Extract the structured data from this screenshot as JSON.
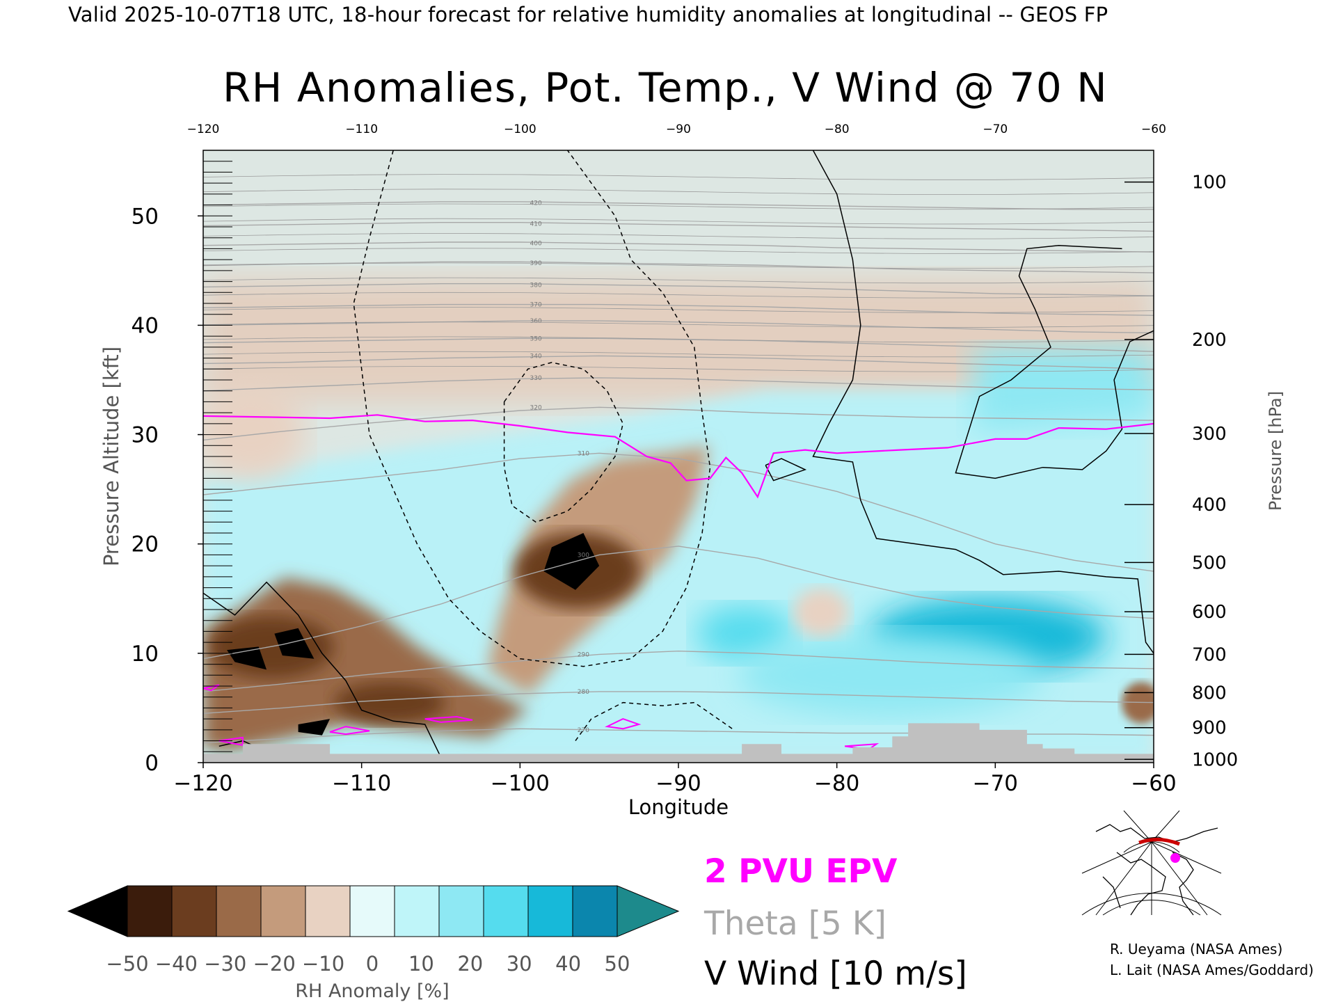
{
  "header": {
    "valid_line": "Valid 2025-10-07T18 UTC, 18-hour forecast for relative humidity anomalies at longitudinal -- GEOS FP",
    "title": "RH Anomalies, Pot. Temp., V Wind @ 70 N"
  },
  "legend": {
    "epv": "2 PVU EPV",
    "theta": "Theta [5 K]",
    "vwind": "V Wind [10 m/s]"
  },
  "credits": {
    "line1": "R. Ueyama (NASA Ames)",
    "line2": "L. Lait (NASA Ames/Goddard)"
  },
  "colors": {
    "epv": "#ff00ff",
    "theta": "#a8a8a8",
    "vwind": "#000000",
    "terrain": "#c0c0c0",
    "locator_marker": "#ff00ff",
    "locator_line": "#cc0000"
  },
  "chart_data": {
    "type": "heatmap",
    "title": "RH Anomalies, Pot. Temp., V Wind @ 70 N",
    "xlabel": "Longitude",
    "ylabel": "Pressure Altitude [kft]",
    "ylabel_right": "Pressure [hPa]",
    "colorbar_label": "RH Anomaly [%]",
    "xlim": [
      -120,
      -60
    ],
    "ylim": [
      0,
      56
    ],
    "x_ticks": [
      -120,
      -110,
      -100,
      -90,
      -80,
      -70,
      -60
    ],
    "y_ticks": [
      0,
      10,
      20,
      30,
      40,
      50
    ],
    "pressure_ticks": [
      {
        "hpa": 100,
        "kft": 53.1
      },
      {
        "hpa": 200,
        "kft": 38.7
      },
      {
        "hpa": 300,
        "kft": 30.1
      },
      {
        "hpa": 400,
        "kft": 23.6
      },
      {
        "hpa": 500,
        "kft": 18.3
      },
      {
        "hpa": 600,
        "kft": 13.8
      },
      {
        "hpa": 700,
        "kft": 9.9
      },
      {
        "hpa": 800,
        "kft": 6.4
      },
      {
        "hpa": 900,
        "kft": 3.2
      },
      {
        "hpa": 1000,
        "kft": 0.3
      }
    ],
    "colorbar": {
      "ticks": [
        -50,
        -40,
        -30,
        -20,
        -10,
        0,
        10,
        20,
        30,
        40,
        50
      ],
      "colors": [
        "#3b1c0c",
        "#6b3d1f",
        "#9a6a48",
        "#c49b7c",
        "#e8d2c2",
        "#e6fafa",
        "#bff5f9",
        "#8ee8f3",
        "#55dcee",
        "#17b9d9",
        "#0b86ad"
      ],
      "under_color": "#000000",
      "over_color": "#1d8a8c"
    },
    "background_fields": {
      "stratosphere_fill": "#dde7e3",
      "lower_stratosphere_tan": "#e3cfc0",
      "moist_cyan": "#b9f1f7"
    },
    "theta_contours": [
      {
        "theta": 270,
        "y": [
          1.8,
          2.2,
          2.6,
          2.9,
          3.1,
          3.0,
          2.9,
          2.8,
          2.7,
          2.7,
          2.6,
          2.6,
          2.5
        ]
      },
      {
        "theta": 280,
        "y": [
          4.5,
          5.0,
          5.6,
          6.0,
          6.3,
          6.5,
          6.5,
          6.4,
          6.2,
          6.0,
          5.8,
          5.6,
          5.5
        ]
      },
      {
        "theta": 290,
        "y": [
          6.5,
          7.2,
          8.0,
          8.7,
          9.3,
          9.9,
          10.2,
          10.0,
          9.6,
          9.2,
          8.9,
          8.7,
          8.6
        ]
      },
      {
        "theta": 300,
        "y": [
          9.5,
          10.8,
          12.5,
          14.5,
          17.0,
          19.0,
          19.8,
          18.7,
          16.8,
          15.2,
          14.2,
          13.6,
          13.2
        ]
      },
      {
        "theta": 310,
        "y": [
          24.5,
          25.3,
          26.0,
          26.8,
          27.8,
          28.3,
          27.8,
          26.5,
          24.8,
          22.5,
          20.0,
          18.5,
          17.5
        ]
      },
      {
        "theta": 320,
        "y": [
          29.5,
          30.3,
          31.0,
          31.6,
          32.2,
          32.5,
          32.3,
          32.0,
          31.8,
          31.6,
          31.5,
          31.4,
          31.3
        ]
      },
      {
        "theta": 330,
        "y": [
          34.0,
          34.3,
          34.6,
          34.9,
          35.1,
          35.2,
          35.1,
          34.9,
          34.7,
          34.5,
          34.3,
          34.2,
          34.1
        ]
      },
      {
        "theta": 340,
        "y": [
          36.5,
          36.6,
          36.8,
          37.0,
          37.1,
          37.2,
          37.1,
          37.0,
          36.8,
          36.6,
          36.4,
          36.2,
          36.0
        ]
      },
      {
        "theta": 350,
        "y": [
          38.4,
          38.5,
          38.6,
          38.7,
          38.8,
          38.8,
          38.7,
          38.6,
          38.4,
          38.2,
          38.0,
          37.8,
          37.6
        ]
      },
      {
        "theta": 360,
        "y": [
          40.0,
          40.1,
          40.2,
          40.3,
          40.4,
          40.4,
          40.3,
          40.2,
          40.0,
          39.8,
          39.6,
          39.4,
          39.3
        ]
      },
      {
        "theta": 370,
        "y": [
          41.6,
          41.7,
          41.8,
          41.9,
          41.9,
          41.9,
          41.8,
          41.7,
          41.5,
          41.3,
          41.1,
          41.0,
          40.9
        ]
      },
      {
        "theta": 380,
        "y": [
          43.5,
          43.6,
          43.7,
          43.8,
          43.8,
          43.7,
          43.6,
          43.5,
          43.3,
          43.1,
          42.9,
          42.8,
          42.7
        ]
      },
      {
        "theta": 390,
        "y": [
          45.5,
          45.6,
          45.7,
          45.8,
          45.8,
          45.7,
          45.6,
          45.5,
          45.3,
          45.1,
          45.0,
          44.9,
          44.8
        ]
      },
      {
        "theta": 400,
        "y": [
          47.3,
          47.4,
          47.5,
          47.6,
          47.6,
          47.5,
          47.4,
          47.3,
          47.1,
          47.0,
          46.9,
          46.8,
          46.7
        ]
      },
      {
        "theta": 410,
        "y": [
          49.1,
          49.2,
          49.3,
          49.4,
          49.4,
          49.3,
          49.2,
          49.1,
          49.0,
          48.9,
          48.8,
          48.7,
          48.6
        ]
      },
      {
        "theta": 420,
        "y": [
          51.0,
          51.1,
          51.2,
          51.3,
          51.3,
          51.2,
          51.1,
          51.0,
          50.9,
          50.8,
          50.7,
          50.6,
          50.6
        ]
      }
    ],
    "theta_x": [
      -120,
      -115,
      -110,
      -105,
      -100,
      -95,
      -90,
      -85,
      -80,
      -75,
      -70,
      -65,
      -60
    ],
    "theta_dense_extra_count": 14,
    "epv_2pvu": {
      "points": [
        [
          -120,
          31.7
        ],
        [
          -116,
          31.6
        ],
        [
          -112,
          31.5
        ],
        [
          -109,
          31.8
        ],
        [
          -106,
          31.2
        ],
        [
          -103,
          31.3
        ],
        [
          -100,
          30.8
        ],
        [
          -97,
          30.2
        ],
        [
          -94,
          29.8
        ],
        [
          -92,
          28.0
        ],
        [
          -90.5,
          27.4
        ],
        [
          -89.5,
          25.8
        ],
        [
          -88,
          26.0
        ],
        [
          -87,
          27.9
        ],
        [
          -86,
          26.5
        ],
        [
          -85,
          24.3
        ],
        [
          -84,
          28.3
        ],
        [
          -82,
          28.6
        ],
        [
          -80,
          28.3
        ],
        [
          -76,
          28.6
        ],
        [
          -73,
          28.8
        ],
        [
          -70,
          29.6
        ],
        [
          -68,
          29.6
        ],
        [
          -66,
          30.6
        ],
        [
          -63,
          30.5
        ],
        [
          -60,
          31.0
        ]
      ],
      "small_loops": [
        [
          [
            -120,
            6.8
          ],
          [
            -119,
            7.1
          ],
          [
            -119.5,
            6.6
          ]
        ],
        [
          [
            -112,
            2.8
          ],
          [
            -111,
            3.3
          ],
          [
            -109.5,
            2.9
          ],
          [
            -111,
            2.6
          ]
        ],
        [
          [
            -106,
            4.0
          ],
          [
            -104,
            4.2
          ],
          [
            -103,
            3.9
          ],
          [
            -105,
            3.7
          ]
        ],
        [
          [
            -94.5,
            3.3
          ],
          [
            -93.5,
            4.0
          ],
          [
            -92.5,
            3.5
          ],
          [
            -93.5,
            3.1
          ]
        ],
        [
          [
            -119,
            2.0
          ],
          [
            -117.5,
            2.3
          ],
          [
            -117.5,
            1.6
          ]
        ],
        [
          [
            -79.5,
            1.5
          ],
          [
            -77.5,
            1.7
          ],
          [
            -78,
            1.2
          ]
        ]
      ]
    },
    "vwind_contours": [
      {
        "level": 10,
        "style": "dashed",
        "points": [
          [
            -108,
            56
          ],
          [
            -109.5,
            48
          ],
          [
            -110.5,
            42
          ],
          [
            -110,
            36
          ],
          [
            -109.5,
            30
          ],
          [
            -108,
            25
          ],
          [
            -106.5,
            20
          ],
          [
            -104.5,
            15
          ],
          [
            -102.5,
            12
          ],
          [
            -100,
            9.5
          ],
          [
            -96,
            8.8
          ],
          [
            -93,
            9.5
          ],
          [
            -91,
            12
          ],
          [
            -89.5,
            16
          ],
          [
            -88.5,
            21
          ],
          [
            -88,
            27
          ],
          [
            -88.5,
            32
          ],
          [
            -89,
            38
          ],
          [
            -91,
            43
          ],
          [
            -93,
            46
          ],
          [
            -94,
            50
          ],
          [
            -96,
            54
          ],
          [
            -97,
            56
          ]
        ]
      },
      {
        "level": 10,
        "style": "dashed",
        "points": [
          [
            -101,
            33
          ],
          [
            -99.5,
            36
          ],
          [
            -98,
            36.6
          ],
          [
            -96,
            36
          ],
          [
            -94.5,
            34
          ],
          [
            -93.5,
            31
          ],
          [
            -94,
            28
          ],
          [
            -95.5,
            25
          ],
          [
            -97,
            23
          ],
          [
            -99,
            22
          ],
          [
            -100.5,
            23.5
          ],
          [
            -101,
            27
          ],
          [
            -101,
            33
          ]
        ]
      },
      {
        "level": -10,
        "style": "dashed",
        "points": [
          [
            -96.5,
            2.0
          ],
          [
            -95.5,
            4.0
          ],
          [
            -93.5,
            5.5
          ],
          [
            -91,
            5.2
          ],
          [
            -89,
            5.5
          ],
          [
            -87.5,
            4.0
          ],
          [
            -86.5,
            3.0
          ]
        ]
      },
      {
        "level": 0,
        "style": "solid",
        "points": [
          [
            -81.5,
            56
          ],
          [
            -80,
            52
          ],
          [
            -79,
            46
          ],
          [
            -78.5,
            40
          ],
          [
            -79,
            35
          ],
          [
            -80.5,
            31
          ],
          [
            -81.5,
            28
          ],
          [
            -79,
            27.5
          ],
          [
            -78.5,
            24
          ],
          [
            -77.5,
            20.5
          ],
          [
            -75,
            20
          ],
          [
            -72.5,
            19.5
          ],
          [
            -71,
            18.5
          ],
          [
            -69.5,
            17.2
          ],
          [
            -66,
            17.5
          ],
          [
            -63,
            17
          ],
          [
            -61,
            16.8
          ],
          [
            -60.5,
            11
          ],
          [
            -60,
            10
          ]
        ]
      },
      {
        "level": 0,
        "style": "solid",
        "points": [
          [
            -120,
            15.5
          ],
          [
            -118,
            13.5
          ],
          [
            -116,
            16.5
          ],
          [
            -114,
            13.5
          ],
          [
            -112.5,
            10
          ],
          [
            -111,
            7.5
          ],
          [
            -110,
            4.8
          ],
          [
            -108,
            3.8
          ],
          [
            -106,
            3.5
          ],
          [
            -105,
            0.5
          ]
        ]
      },
      {
        "level": 0,
        "style": "solid",
        "points": [
          [
            -84.5,
            27.2
          ],
          [
            -83.5,
            27.8
          ],
          [
            -82,
            26.8
          ],
          [
            -84,
            25.8
          ],
          [
            -84.5,
            27.2
          ]
        ]
      },
      {
        "level": 0,
        "style": "solid",
        "points": [
          [
            -119,
            1.5
          ],
          [
            -117.5,
            2.0
          ],
          [
            -116,
            1.0
          ]
        ]
      },
      {
        "level": -10,
        "style": "solid",
        "points": [
          [
            -62,
            47
          ],
          [
            -66,
            47.3
          ],
          [
            -68,
            47
          ],
          [
            -68.5,
            44.5
          ],
          [
            -67.5,
            41.5
          ],
          [
            -66.5,
            38
          ],
          [
            -69,
            35
          ],
          [
            -71,
            33.5
          ],
          [
            -72.5,
            26.5
          ],
          [
            -70,
            26
          ],
          [
            -67,
            27
          ],
          [
            -64.5,
            26.8
          ],
          [
            -63,
            28.5
          ],
          [
            -62,
            30.5
          ],
          [
            -62.5,
            35
          ],
          [
            -61.5,
            38.5
          ],
          [
            -60,
            39.5
          ]
        ]
      }
    ],
    "dry_blobs": [
      {
        "points": [
          [
            -118.5,
            10.3
          ],
          [
            -116.5,
            10.6
          ],
          [
            -116,
            8.5
          ],
          [
            -118,
            9.2
          ]
        ]
      },
      {
        "points": [
          [
            -115.5,
            11.8
          ],
          [
            -114,
            12.3
          ],
          [
            -113,
            9.5
          ],
          [
            -115,
            9.8
          ]
        ]
      },
      {
        "points": [
          [
            -98,
            19.7
          ],
          [
            -96,
            21.0
          ],
          [
            -95,
            18
          ],
          [
            -96.5,
            15.8
          ],
          [
            -98.5,
            17.5
          ]
        ]
      },
      {
        "points": [
          [
            -114,
            3.5
          ],
          [
            -112,
            4.0
          ],
          [
            -112.5,
            2.5
          ],
          [
            -114,
            2.8
          ]
        ]
      }
    ],
    "terrain": [
      [
        -120,
        0.8
      ],
      [
        -117.5,
        0.8
      ],
      [
        -117.5,
        1.7
      ],
      [
        -112,
        1.7
      ],
      [
        -112,
        0.8
      ],
      [
        -86,
        0.8
      ],
      [
        -86,
        1.7
      ],
      [
        -83.5,
        1.7
      ],
      [
        -83.5,
        0.8
      ],
      [
        -79,
        0.8
      ],
      [
        -79,
        1.4
      ],
      [
        -76.5,
        1.4
      ],
      [
        -76.5,
        2.4
      ],
      [
        -75.5,
        2.4
      ],
      [
        -75.5,
        3.6
      ],
      [
        -71,
        3.6
      ],
      [
        -71,
        3.0
      ],
      [
        -68,
        3.0
      ],
      [
        -68,
        1.7
      ],
      [
        -67,
        1.7
      ],
      [
        -67,
        1.3
      ],
      [
        -65,
        1.3
      ],
      [
        -65,
        0.8
      ],
      [
        -60,
        0.8
      ]
    ]
  }
}
